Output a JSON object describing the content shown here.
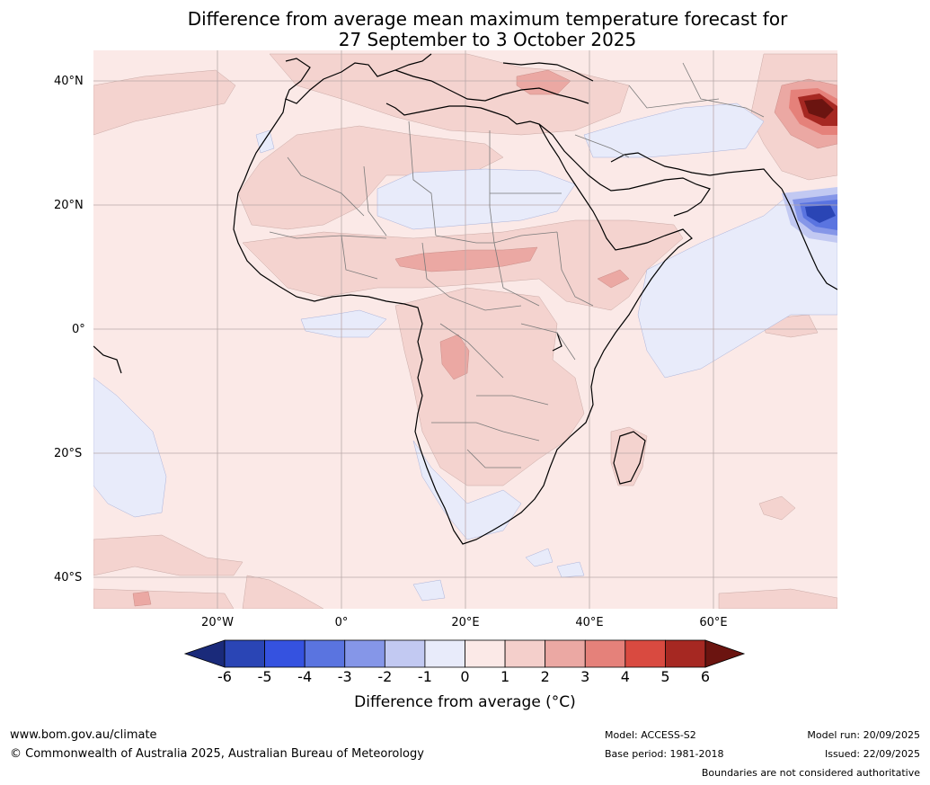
{
  "title": {
    "line1": "Difference from average mean maximum temperature forecast for",
    "line2": "27 September to 3 October 2025"
  },
  "axes": {
    "lat_labels": [
      "40°N",
      "20°N",
      "0°",
      "20°S",
      "40°S"
    ],
    "lon_labels": [
      "20°W",
      "0°",
      "20°E",
      "40°E",
      "60°E"
    ]
  },
  "colorbar": {
    "ticks": [
      "-6",
      "-5",
      "-4",
      "-3",
      "-2",
      "-1",
      "0",
      "1",
      "2",
      "3",
      "4",
      "5",
      "6"
    ],
    "colors": [
      "#1a2a7a",
      "#2a45b5",
      "#3552e0",
      "#5a74e0",
      "#8596e8",
      "#c2c9f2",
      "#e8ebfa",
      "#fbe9e7",
      "#f4cfcb",
      "#eba8a3",
      "#e5817a",
      "#d94a40",
      "#a62822",
      "#6b1410"
    ],
    "label": "Difference from average (°C)"
  },
  "footer": {
    "url": "www.bom.gov.au/climate",
    "copyright": "© Commonwealth of Australia 2025, Australian Bureau of Meteorology",
    "model": "Model: ACCESS-S2",
    "base_period": "Base period: 1981-2018",
    "model_run": "Model run: 20/09/2025",
    "issued": "Issued: 22/09/2025",
    "disclaimer": "Boundaries are not considered authoritative"
  }
}
